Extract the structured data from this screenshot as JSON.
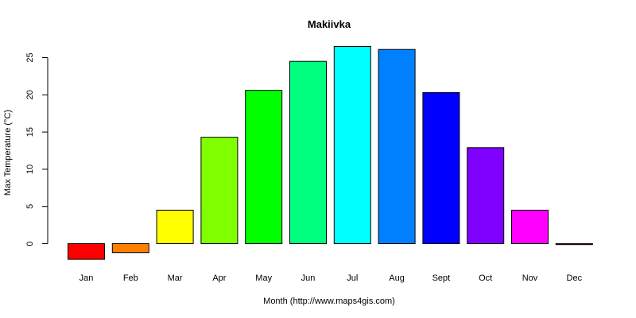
{
  "chart_data": {
    "type": "bar",
    "title": "Makiivka",
    "xlabel": "Month (http://www.maps4gis.com)",
    "ylabel": "Max Temperature (°C)",
    "categories": [
      "Jan",
      "Feb",
      "Mar",
      "Apr",
      "May",
      "Jun",
      "Jul",
      "Aug",
      "Sept",
      "Oct",
      "Nov",
      "Dec"
    ],
    "values": [
      -2.1,
      -1.2,
      4.5,
      14.3,
      20.6,
      24.5,
      26.5,
      26.1,
      20.3,
      12.9,
      4.5,
      -0.1
    ],
    "colors": [
      "#FF0000",
      "#FF8000",
      "#FFFF00",
      "#80FF00",
      "#00FF00",
      "#00FF80",
      "#00FFFF",
      "#0080FF",
      "#0000FF",
      "#8000FF",
      "#FF00FF",
      "#FF0080"
    ],
    "yticks": [
      0,
      5,
      10,
      15,
      20,
      25
    ],
    "ylim": [
      -2.1,
      26.5
    ],
    "grid": false,
    "legend": "none"
  }
}
